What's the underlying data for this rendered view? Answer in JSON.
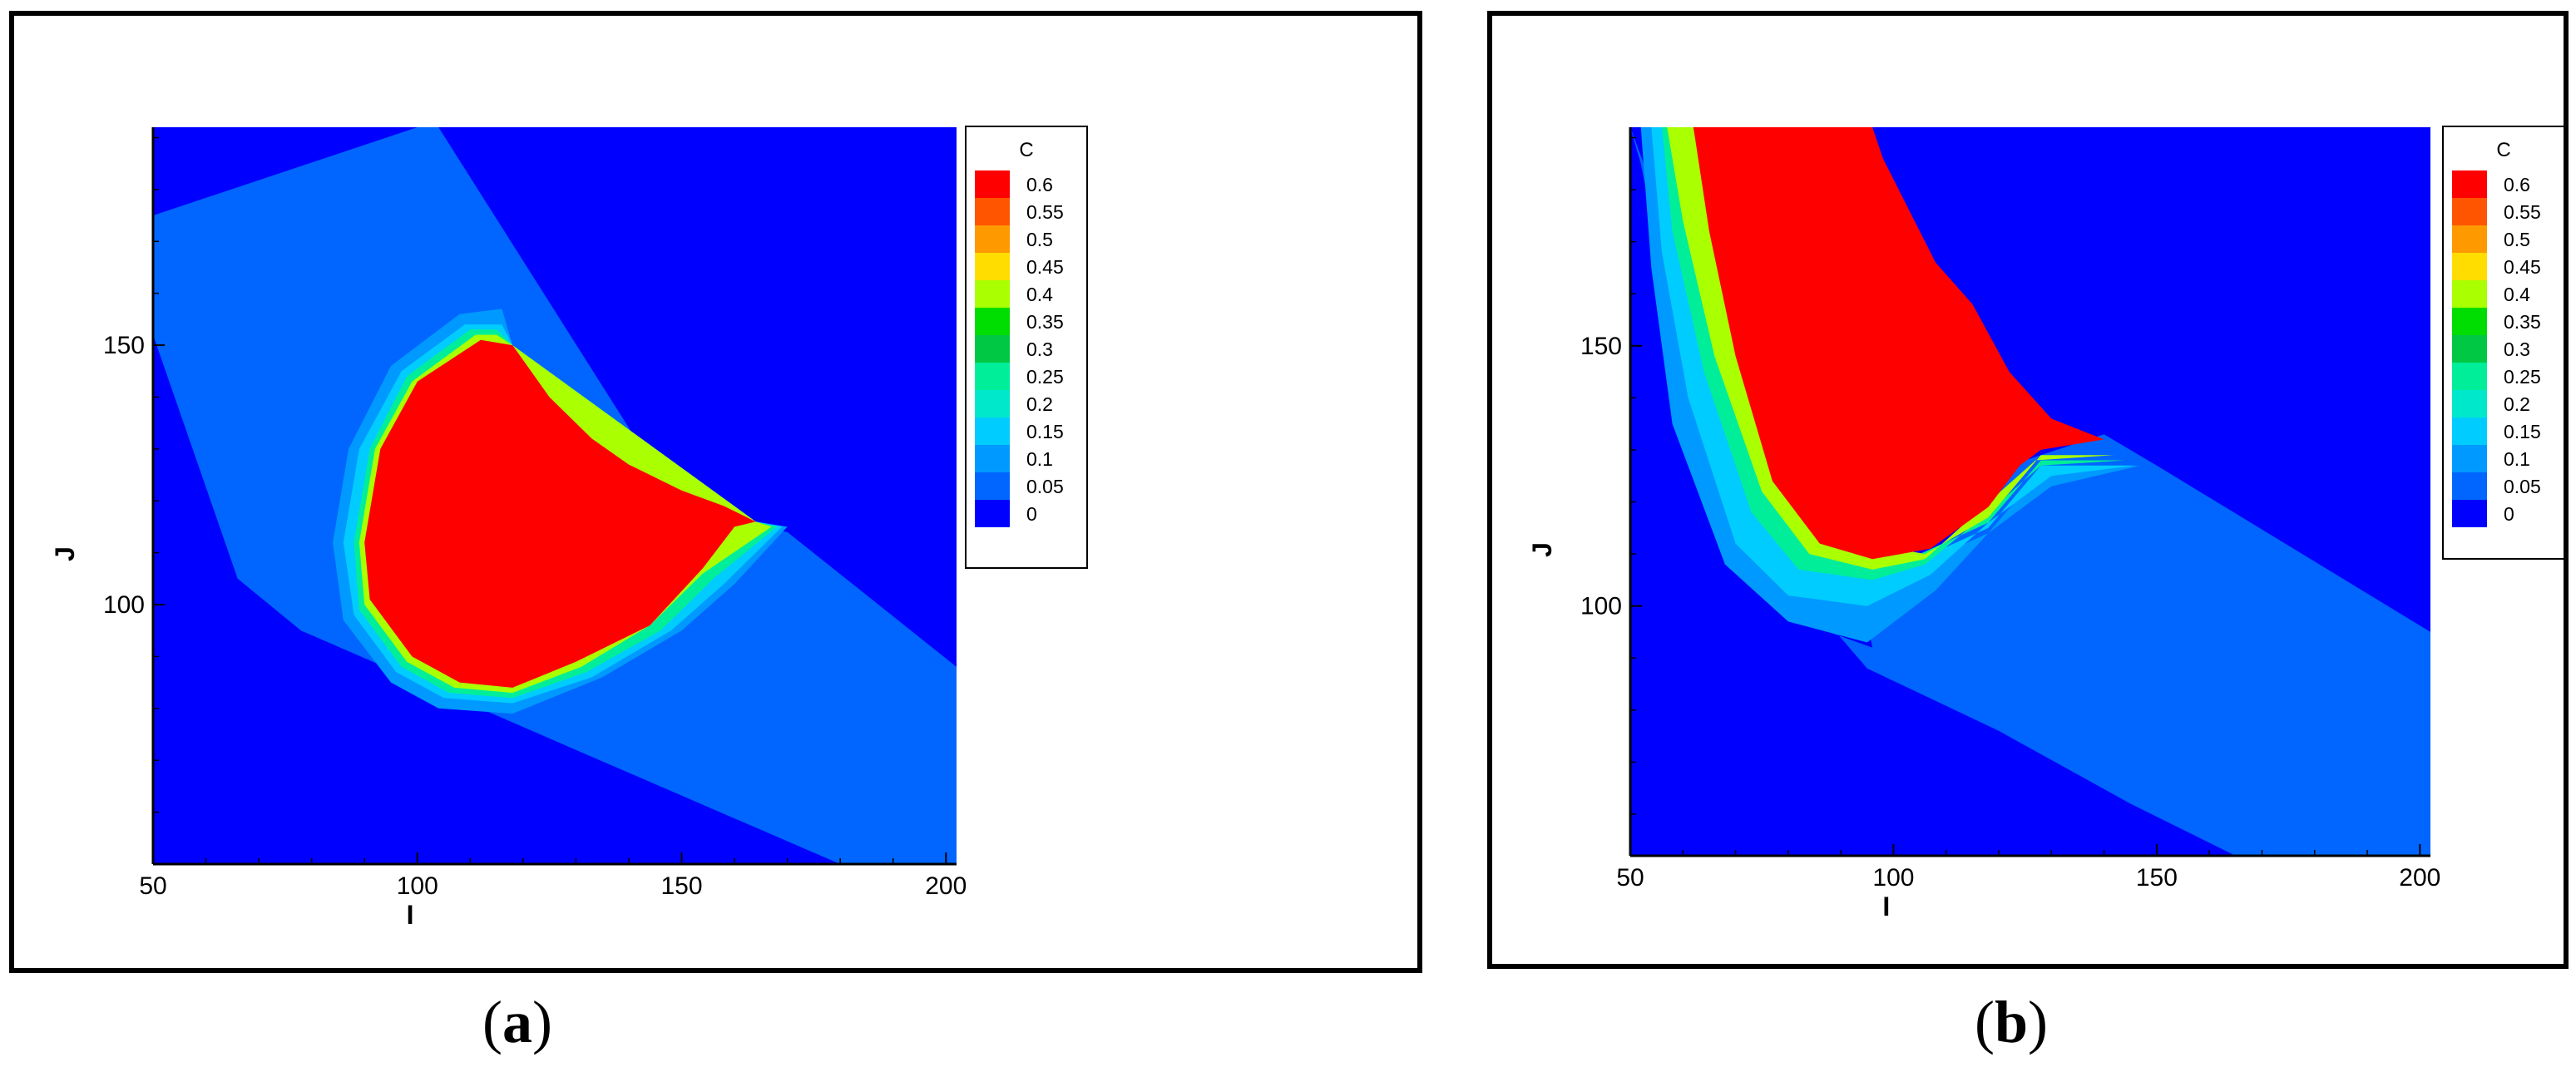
{
  "chart_data": [
    {
      "type": "heatmap",
      "panel_label": "a",
      "xlabel": "I",
      "ylabel": "J",
      "xlim": [
        50,
        202
      ],
      "ylim": [
        50,
        192
      ],
      "xticks": [
        50,
        100,
        150,
        200
      ],
      "yticks": [
        100,
        150
      ],
      "legend": {
        "title": "C",
        "placement": "right",
        "levels": [
          0.6,
          0.55,
          0.5,
          0.45,
          0.4,
          0.35,
          0.3,
          0.25,
          0.2,
          0.15,
          0.1,
          0.05,
          0
        ],
        "colors": [
          "#ff0000",
          "#ff5500",
          "#ff9900",
          "#ffdd00",
          "#aaff00",
          "#00dd00",
          "#00c844",
          "#00ee99",
          "#00e8cc",
          "#00ccff",
          "#0099ff",
          "#0066ff",
          "#0000ff"
        ]
      },
      "regions": [
        {
          "c": 0.05,
          "polygon": [
            [
              50,
              175
            ],
            [
              100,
              192
            ],
            [
              104,
              192
            ],
            [
              150,
              118
            ],
            [
              170,
              114
            ],
            [
              202,
              88
            ],
            [
              202,
              50
            ],
            [
              180,
              50
            ],
            [
              130,
              72
            ],
            [
              78,
              95
            ],
            [
              66,
              105
            ],
            [
              50,
              152
            ]
          ]
        },
        {
          "c": 0.1,
          "polygon": [
            [
              108,
              156
            ],
            [
              116,
              157
            ],
            [
              118,
              150
            ],
            [
              164,
              116
            ],
            [
              170,
              115
            ],
            [
              160,
              104
            ],
            [
              150,
              95
            ],
            [
              135,
              86
            ],
            [
              118,
              79
            ],
            [
              104,
              80
            ],
            [
              95,
              85
            ],
            [
              86,
              97
            ],
            [
              84,
              112
            ],
            [
              87,
              130
            ],
            [
              95,
              146
            ]
          ]
        },
        {
          "c": 0.15,
          "polygon": [
            [
              109,
              154
            ],
            [
              116,
              154
            ],
            [
              118,
              150
            ],
            [
              164,
              116
            ],
            [
              169,
              115
            ],
            [
              158,
              104
            ],
            [
              148,
              95
            ],
            [
              133,
              86
            ],
            [
              118,
              81
            ],
            [
              105,
              82
            ],
            [
              96,
              87
            ],
            [
              88,
              98
            ],
            [
              86,
              112
            ],
            [
              89,
              130
            ],
            [
              97,
              145
            ]
          ]
        },
        {
          "c": 0.25,
          "polygon": [
            [
              110,
              153
            ],
            [
              115,
              153
            ],
            [
              118,
              150
            ],
            [
              164,
              116
            ],
            [
              168,
              115
            ],
            [
              156,
              105
            ],
            [
              146,
              95
            ],
            [
              132,
              87
            ],
            [
              118,
              82
            ],
            [
              106,
              83
            ],
            [
              97,
              88
            ],
            [
              89,
              99
            ],
            [
              88,
              112
            ],
            [
              91,
              130
            ],
            [
              98,
              144
            ]
          ]
        },
        {
          "c": 0.4,
          "polygon": [
            [
              111,
              152
            ],
            [
              115,
              152
            ],
            [
              118,
              150
            ],
            [
              164,
              116
            ],
            [
              167,
              115
            ],
            [
              154,
              106
            ],
            [
              144,
              96
            ],
            [
              131,
              88
            ],
            [
              118,
              83
            ],
            [
              107,
              84
            ],
            [
              98,
              89
            ],
            [
              90,
              100
            ],
            [
              89,
              112
            ],
            [
              92,
              130
            ],
            [
              99,
              143
            ]
          ]
        },
        {
          "c": 0.6,
          "polygon": [
            [
              112,
              151
            ],
            [
              118,
              150
            ],
            [
              125,
              140
            ],
            [
              133,
              132
            ],
            [
              140,
              127
            ],
            [
              150,
              122
            ],
            [
              158,
              119
            ],
            [
              164,
              116
            ],
            [
              160,
              115
            ],
            [
              154,
              107
            ],
            [
              144,
              96
            ],
            [
              130,
              89
            ],
            [
              118,
              84
            ],
            [
              108,
              85
            ],
            [
              99,
              90
            ],
            [
              91,
              101
            ],
            [
              90,
              112
            ],
            [
              93,
              130
            ],
            [
              100,
              143
            ]
          ]
        }
      ]
    },
    {
      "type": "heatmap",
      "panel_label": "b",
      "xlabel": "I",
      "ylabel": "J",
      "xlim": [
        50,
        202
      ],
      "ylim": [
        52,
        192
      ],
      "xticks": [
        50,
        100,
        150,
        200
      ],
      "yticks": [
        100,
        150
      ],
      "legend": {
        "title": "C",
        "placement": "right",
        "levels": [
          0.6,
          0.55,
          0.5,
          0.45,
          0.4,
          0.35,
          0.3,
          0.25,
          0.2,
          0.15,
          0.1,
          0.05,
          0
        ],
        "colors": [
          "#ff0000",
          "#ff5500",
          "#ff9900",
          "#ffdd00",
          "#aaff00",
          "#00dd00",
          "#00c844",
          "#00ee99",
          "#00e8cc",
          "#00ccff",
          "#0099ff",
          "#0066ff",
          "#0000ff"
        ]
      },
      "regions": [
        {
          "c": 0.05,
          "polygon": [
            [
              50,
              192
            ],
            [
              52,
              185
            ],
            [
              55,
              170
            ],
            [
              60,
              150
            ],
            [
              68,
              128
            ],
            [
              78,
              108
            ],
            [
              95,
              88
            ],
            [
              120,
              76
            ],
            [
              145,
              62
            ],
            [
              165,
              52
            ],
            [
              202,
              52
            ],
            [
              202,
              95
            ],
            [
              150,
              127
            ],
            [
              140,
              133
            ],
            [
              125,
              128
            ],
            [
              105,
              107
            ],
            [
              95,
              97
            ],
            [
              96,
              92
            ],
            [
              85,
              96
            ]
          ]
        },
        {
          "c": 0.1,
          "polygon": [
            [
              52,
              192
            ],
            [
              58,
              192
            ],
            [
              62,
              175
            ],
            [
              68,
              150
            ],
            [
              78,
              125
            ],
            [
              92,
              112
            ],
            [
              105,
              108
            ],
            [
              118,
              114
            ],
            [
              128,
              126
            ],
            [
              147,
              127
            ],
            [
              130,
              123
            ],
            [
              118,
              114
            ],
            [
              108,
              103
            ],
            [
              95,
              93
            ],
            [
              80,
              97
            ],
            [
              68,
              108
            ],
            [
              58,
              135
            ],
            [
              54,
              165
            ]
          ]
        },
        {
          "c": 0.15,
          "polygon": [
            [
              54,
              192
            ],
            [
              59,
              192
            ],
            [
              63,
              175
            ],
            [
              69,
              150
            ],
            [
              79,
              125
            ],
            [
              93,
              112
            ],
            [
              105,
              109
            ],
            [
              118,
              115
            ],
            [
              128,
              127
            ],
            [
              146,
              127
            ],
            [
              130,
              125
            ],
            [
              118,
              116
            ],
            [
              107,
              106
            ],
            [
              95,
              100
            ],
            [
              80,
              102
            ],
            [
              70,
              112
            ],
            [
              61,
              140
            ],
            [
              56,
              168
            ]
          ]
        },
        {
          "c": 0.25,
          "polygon": [
            [
              56,
              192
            ],
            [
              61,
              192
            ],
            [
              64,
              175
            ],
            [
              70,
              150
            ],
            [
              80,
              125
            ],
            [
              94,
              112
            ],
            [
              105,
              110
            ],
            [
              118,
              116
            ],
            [
              128,
              128
            ],
            [
              144,
              128
            ],
            [
              128,
              127
            ],
            [
              118,
              118
            ],
            [
              106,
              108
            ],
            [
              96,
              105
            ],
            [
              82,
              107
            ],
            [
              73,
              118
            ],
            [
              64,
              145
            ],
            [
              58,
              172
            ]
          ]
        },
        {
          "c": 0.4,
          "polygon": [
            [
              57,
              192
            ],
            [
              62,
              192
            ],
            [
              65,
              175
            ],
            [
              71,
              150
            ],
            [
              81,
              125
            ],
            [
              95,
              112
            ],
            [
              106,
              110
            ],
            [
              118,
              117
            ],
            [
              128,
              129
            ],
            [
              142,
              129
            ],
            [
              127,
              128
            ],
            [
              117,
              119
            ],
            [
              106,
              109
            ],
            [
              96,
              107
            ],
            [
              84,
              110
            ],
            [
              75,
              122
            ],
            [
              66,
              148
            ],
            [
              60,
              174
            ]
          ]
        },
        {
          "c": 0.6,
          "polygon": [
            [
              62,
              192
            ],
            [
              96,
              192
            ],
            [
              98,
              186
            ],
            [
              103,
              176
            ],
            [
              108,
              166
            ],
            [
              115,
              158
            ],
            [
              122,
              145
            ],
            [
              130,
              136
            ],
            [
              140,
              132
            ],
            [
              128,
              130
            ],
            [
              124,
              127
            ],
            [
              118,
              119
            ],
            [
              107,
              111
            ],
            [
              96,
              109
            ],
            [
              86,
              112
            ],
            [
              77,
              124
            ],
            [
              70,
              148
            ],
            [
              65,
              172
            ]
          ]
        }
      ]
    }
  ],
  "captions": [
    {
      "prefix": "(",
      "label": "a",
      "suffix": ")"
    },
    {
      "prefix": "(",
      "label": "b",
      "suffix": ")"
    }
  ]
}
